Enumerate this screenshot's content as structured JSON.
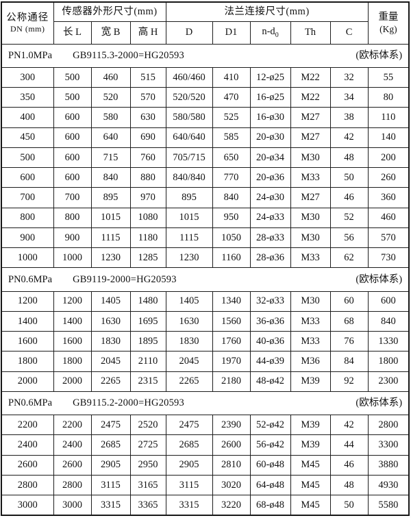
{
  "table": {
    "header": {
      "dn_line1": "公称通径",
      "dn_line2": "DN (mm)",
      "group_sensor": "传感器外形尺寸(mm)",
      "group_flange": "法兰连接尺寸(mm)",
      "weight_line1": "重量",
      "weight_line2": "(Kg)",
      "col_l": "长 L",
      "col_b": "宽 B",
      "col_h": "高 H",
      "col_d": "D",
      "col_d1": "D1",
      "col_nd_base": "n-d",
      "col_nd_sub": "0",
      "col_th": "Th",
      "col_c": "C"
    },
    "column_keys": [
      "dn",
      "length-l",
      "width-b",
      "height-h",
      "d",
      "d1",
      "n-d0",
      "th",
      "c",
      "weight"
    ],
    "sections": [
      {
        "pressure": "PN1.0MPa",
        "standard": "GB9115.3-2000=HG20593",
        "note": "(欧标体系)",
        "rows": [
          [
            "300",
            "500",
            "460",
            "515",
            "460/460",
            "410",
            "12-ø25",
            "M22",
            "32",
            "55"
          ],
          [
            "350",
            "500",
            "520",
            "570",
            "520/520",
            "470",
            "16-ø25",
            "M22",
            "34",
            "80"
          ],
          [
            "400",
            "600",
            "580",
            "630",
            "580/580",
            "525",
            "16-ø30",
            "M27",
            "38",
            "110"
          ],
          [
            "450",
            "600",
            "640",
            "690",
            "640/640",
            "585",
            "20-ø30",
            "M27",
            "42",
            "140"
          ],
          [
            "500",
            "600",
            "715",
            "760",
            "705/715",
            "650",
            "20-ø34",
            "M30",
            "48",
            "200"
          ],
          [
            "600",
            "600",
            "840",
            "880",
            "840/840",
            "770",
            "20-ø36",
            "M33",
            "50",
            "260"
          ],
          [
            "700",
            "700",
            "895",
            "970",
            "895",
            "840",
            "24-ø30",
            "M27",
            "46",
            "360"
          ],
          [
            "800",
            "800",
            "1015",
            "1080",
            "1015",
            "950",
            "24-ø33",
            "M30",
            "52",
            "460"
          ],
          [
            "900",
            "900",
            "1115",
            "1180",
            "1115",
            "1050",
            "28-ø33",
            "M30",
            "56",
            "570"
          ],
          [
            "1000",
            "1000",
            "1230",
            "1285",
            "1230",
            "1160",
            "28-ø36",
            "M33",
            "62",
            "730"
          ]
        ]
      },
      {
        "pressure": "PN0.6MPa",
        "standard": "GB9119-2000=HG20593",
        "note": "(欧标体系)",
        "rows": [
          [
            "1200",
            "1200",
            "1405",
            "1480",
            "1405",
            "1340",
            "32-ø33",
            "M30",
            "60",
            "600"
          ],
          [
            "1400",
            "1400",
            "1630",
            "1695",
            "1630",
            "1560",
            "36-ø36",
            "M33",
            "68",
            "840"
          ],
          [
            "1600",
            "1600",
            "1830",
            "1895",
            "1830",
            "1760",
            "40-ø36",
            "M33",
            "76",
            "1330"
          ],
          [
            "1800",
            "1800",
            "2045",
            "2110",
            "2045",
            "1970",
            "44-ø39",
            "M36",
            "84",
            "1800"
          ],
          [
            "2000",
            "2000",
            "2265",
            "2315",
            "2265",
            "2180",
            "48-ø42",
            "M39",
            "92",
            "2300"
          ]
        ]
      },
      {
        "pressure": "PN0.6MPa",
        "standard": "GB9115.2-2000=HG20593",
        "note": "(欧标体系)",
        "rows": [
          [
            "2200",
            "2200",
            "2475",
            "2520",
            "2475",
            "2390",
            "52-ø42",
            "M39",
            "42",
            "2800"
          ],
          [
            "2400",
            "2400",
            "2685",
            "2725",
            "2685",
            "2600",
            "56-ø42",
            "M39",
            "44",
            "3300"
          ],
          [
            "2600",
            "2600",
            "2905",
            "2950",
            "2905",
            "2810",
            "60-ø48",
            "M45",
            "46",
            "3880"
          ],
          [
            "2800",
            "2800",
            "3115",
            "3165",
            "3115",
            "3020",
            "64-ø48",
            "M45",
            "48",
            "4930"
          ],
          [
            "3000",
            "3000",
            "3315",
            "3365",
            "3315",
            "3220",
            "68-ø48",
            "M45",
            "50",
            "5580"
          ]
        ]
      }
    ]
  }
}
